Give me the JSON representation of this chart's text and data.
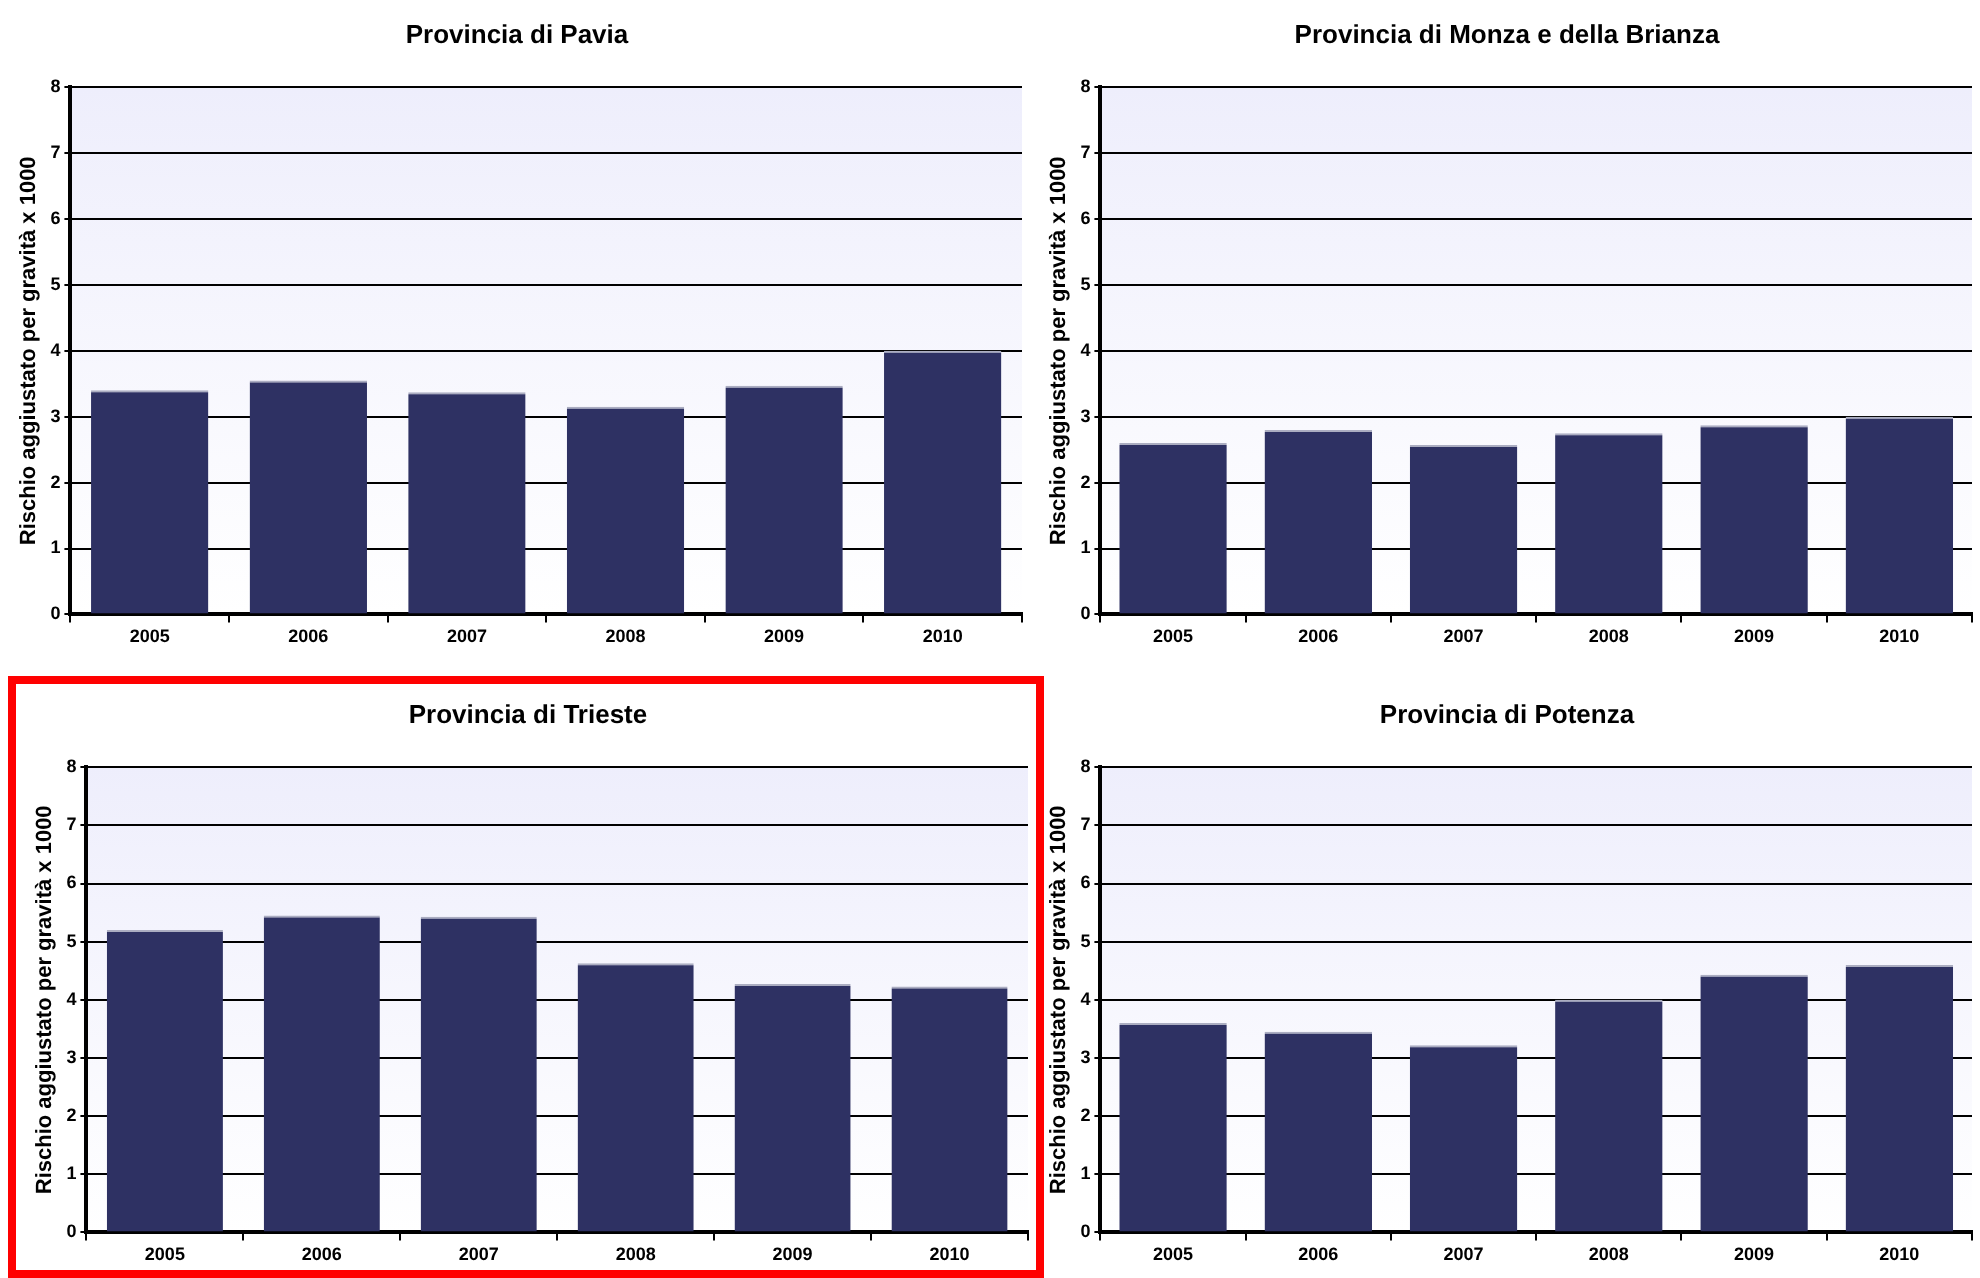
{
  "chart_data": [
    {
      "type": "bar",
      "title": "Provincia di Pavia",
      "ylabel": "Rischio aggiustato per gravità x 1000",
      "categories": [
        "2005",
        "2006",
        "2007",
        "2008",
        "2009",
        "2010"
      ],
      "values": [
        3.4,
        3.55,
        3.37,
        3.15,
        3.47,
        4.0
      ],
      "color": "#2e3163",
      "ylim": [
        0,
        8
      ],
      "yticks": [
        0,
        1,
        2,
        3,
        4,
        5,
        6,
        7,
        8
      ],
      "grid": "y"
    },
    {
      "type": "bar",
      "title": "Provincia di Monza e della Brianza",
      "ylabel": "Rischio aggiustato per gravità x 1000",
      "categories": [
        "2005",
        "2006",
        "2007",
        "2008",
        "2009",
        "2010"
      ],
      "values": [
        2.6,
        2.8,
        2.57,
        2.75,
        2.87,
        3.0
      ],
      "color": "#2e3163",
      "ylim": [
        0,
        8
      ],
      "yticks": [
        0,
        1,
        2,
        3,
        4,
        5,
        6,
        7,
        8
      ],
      "grid": "y"
    },
    {
      "type": "bar",
      "title": "Provincia di Trieste",
      "ylabel": "Rischio aggiustato per gravità x 1000",
      "categories": [
        "2005",
        "2006",
        "2007",
        "2008",
        "2009",
        "2010"
      ],
      "values": [
        5.2,
        5.45,
        5.43,
        4.63,
        4.27,
        4.23
      ],
      "color": "#2e3163",
      "ylim": [
        0,
        8
      ],
      "yticks": [
        0,
        1,
        2,
        3,
        4,
        5,
        6,
        7,
        8
      ],
      "grid": "y"
    },
    {
      "type": "bar",
      "title": "Provincia di Potenza",
      "ylabel": "Rischio aggiustato per gravità x 1000",
      "categories": [
        "2005",
        "2006",
        "2007",
        "2008",
        "2009",
        "2010"
      ],
      "values": [
        3.6,
        3.45,
        3.22,
        4.0,
        4.43,
        4.6
      ],
      "color": "#2e3163",
      "ylim": [
        0,
        8
      ],
      "yticks": [
        0,
        1,
        2,
        3,
        4,
        5,
        6,
        7,
        8
      ],
      "grid": "y"
    }
  ]
}
